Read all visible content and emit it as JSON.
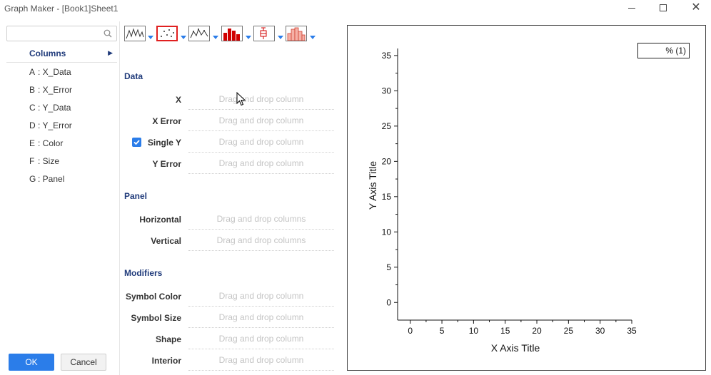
{
  "window": {
    "title": "Graph Maker - [Book1]Sheet1"
  },
  "sidebar": {
    "search_placeholder": "",
    "columns_header": "Columns",
    "columns": [
      {
        "key": "A",
        "name": ": X_Data"
      },
      {
        "key": "B",
        "name": ": X_Error"
      },
      {
        "key": "C",
        "name": ": Y_Data"
      },
      {
        "key": "D",
        "name": ": Y_Error"
      },
      {
        "key": "E",
        "name": ": Color"
      },
      {
        "key": "F",
        "name": ": Size"
      },
      {
        "key": "G",
        "name": ": Panel"
      }
    ],
    "ok_label": "OK",
    "cancel_label": "Cancel"
  },
  "toolbar": {
    "plot_types": [
      {
        "name": "line-plot-icon",
        "selected": false
      },
      {
        "name": "scatter-plot-icon",
        "selected": true
      },
      {
        "name": "line-symbol-plot-icon",
        "selected": false
      },
      {
        "name": "column-plot-icon",
        "selected": false
      },
      {
        "name": "box-plot-icon",
        "selected": false
      },
      {
        "name": "histogram-plot-icon",
        "selected": false
      }
    ]
  },
  "form": {
    "data_section": "Data",
    "data_rows": [
      {
        "label": "X",
        "placeholder": "Drag and drop column"
      },
      {
        "label": "X Error",
        "placeholder": "Drag and drop column"
      },
      {
        "label": "Single  Y",
        "placeholder": "Drag and drop column",
        "checked": true
      },
      {
        "label": "Y Error",
        "placeholder": "Drag and drop column"
      }
    ],
    "panel_section": "Panel",
    "panel_rows": [
      {
        "label": "Horizontal",
        "placeholder": "Drag and drop columns"
      },
      {
        "label": "Vertical",
        "placeholder": "Drag and drop columns"
      }
    ],
    "modifiers_section": "Modifiers",
    "modifier_rows": [
      {
        "label": "Symbol Color",
        "placeholder": "Drag and drop column"
      },
      {
        "label": "Symbol Size",
        "placeholder": "Drag and drop column"
      },
      {
        "label": "Shape",
        "placeholder": "Drag and drop column"
      },
      {
        "label": "Interior",
        "placeholder": "Drag and drop column"
      }
    ]
  },
  "graph": {
    "xlabel": "X Axis Title",
    "ylabel": "Y Axis Title",
    "x_ticks": [
      "0",
      "5",
      "10",
      "15",
      "20",
      "25",
      "30",
      "35"
    ],
    "y_ticks": [
      "0",
      "5",
      "10",
      "15",
      "20",
      "25",
      "30",
      "35"
    ],
    "legend": "% (1)",
    "accent": "#2b7de9"
  },
  "chart_data": {
    "type": "scatter",
    "title": "",
    "xlabel": "X Axis Title",
    "ylabel": "Y Axis Title",
    "xlim": [
      -2,
      35
    ],
    "ylim": [
      -2.5,
      36
    ],
    "x_ticks": [
      0,
      5,
      10,
      15,
      20,
      25,
      30,
      35
    ],
    "y_ticks": [
      0,
      5,
      10,
      15,
      20,
      25,
      30,
      35
    ],
    "series": [],
    "legend": [
      "% (1)"
    ],
    "legend_position": "top-right",
    "grid": false
  }
}
